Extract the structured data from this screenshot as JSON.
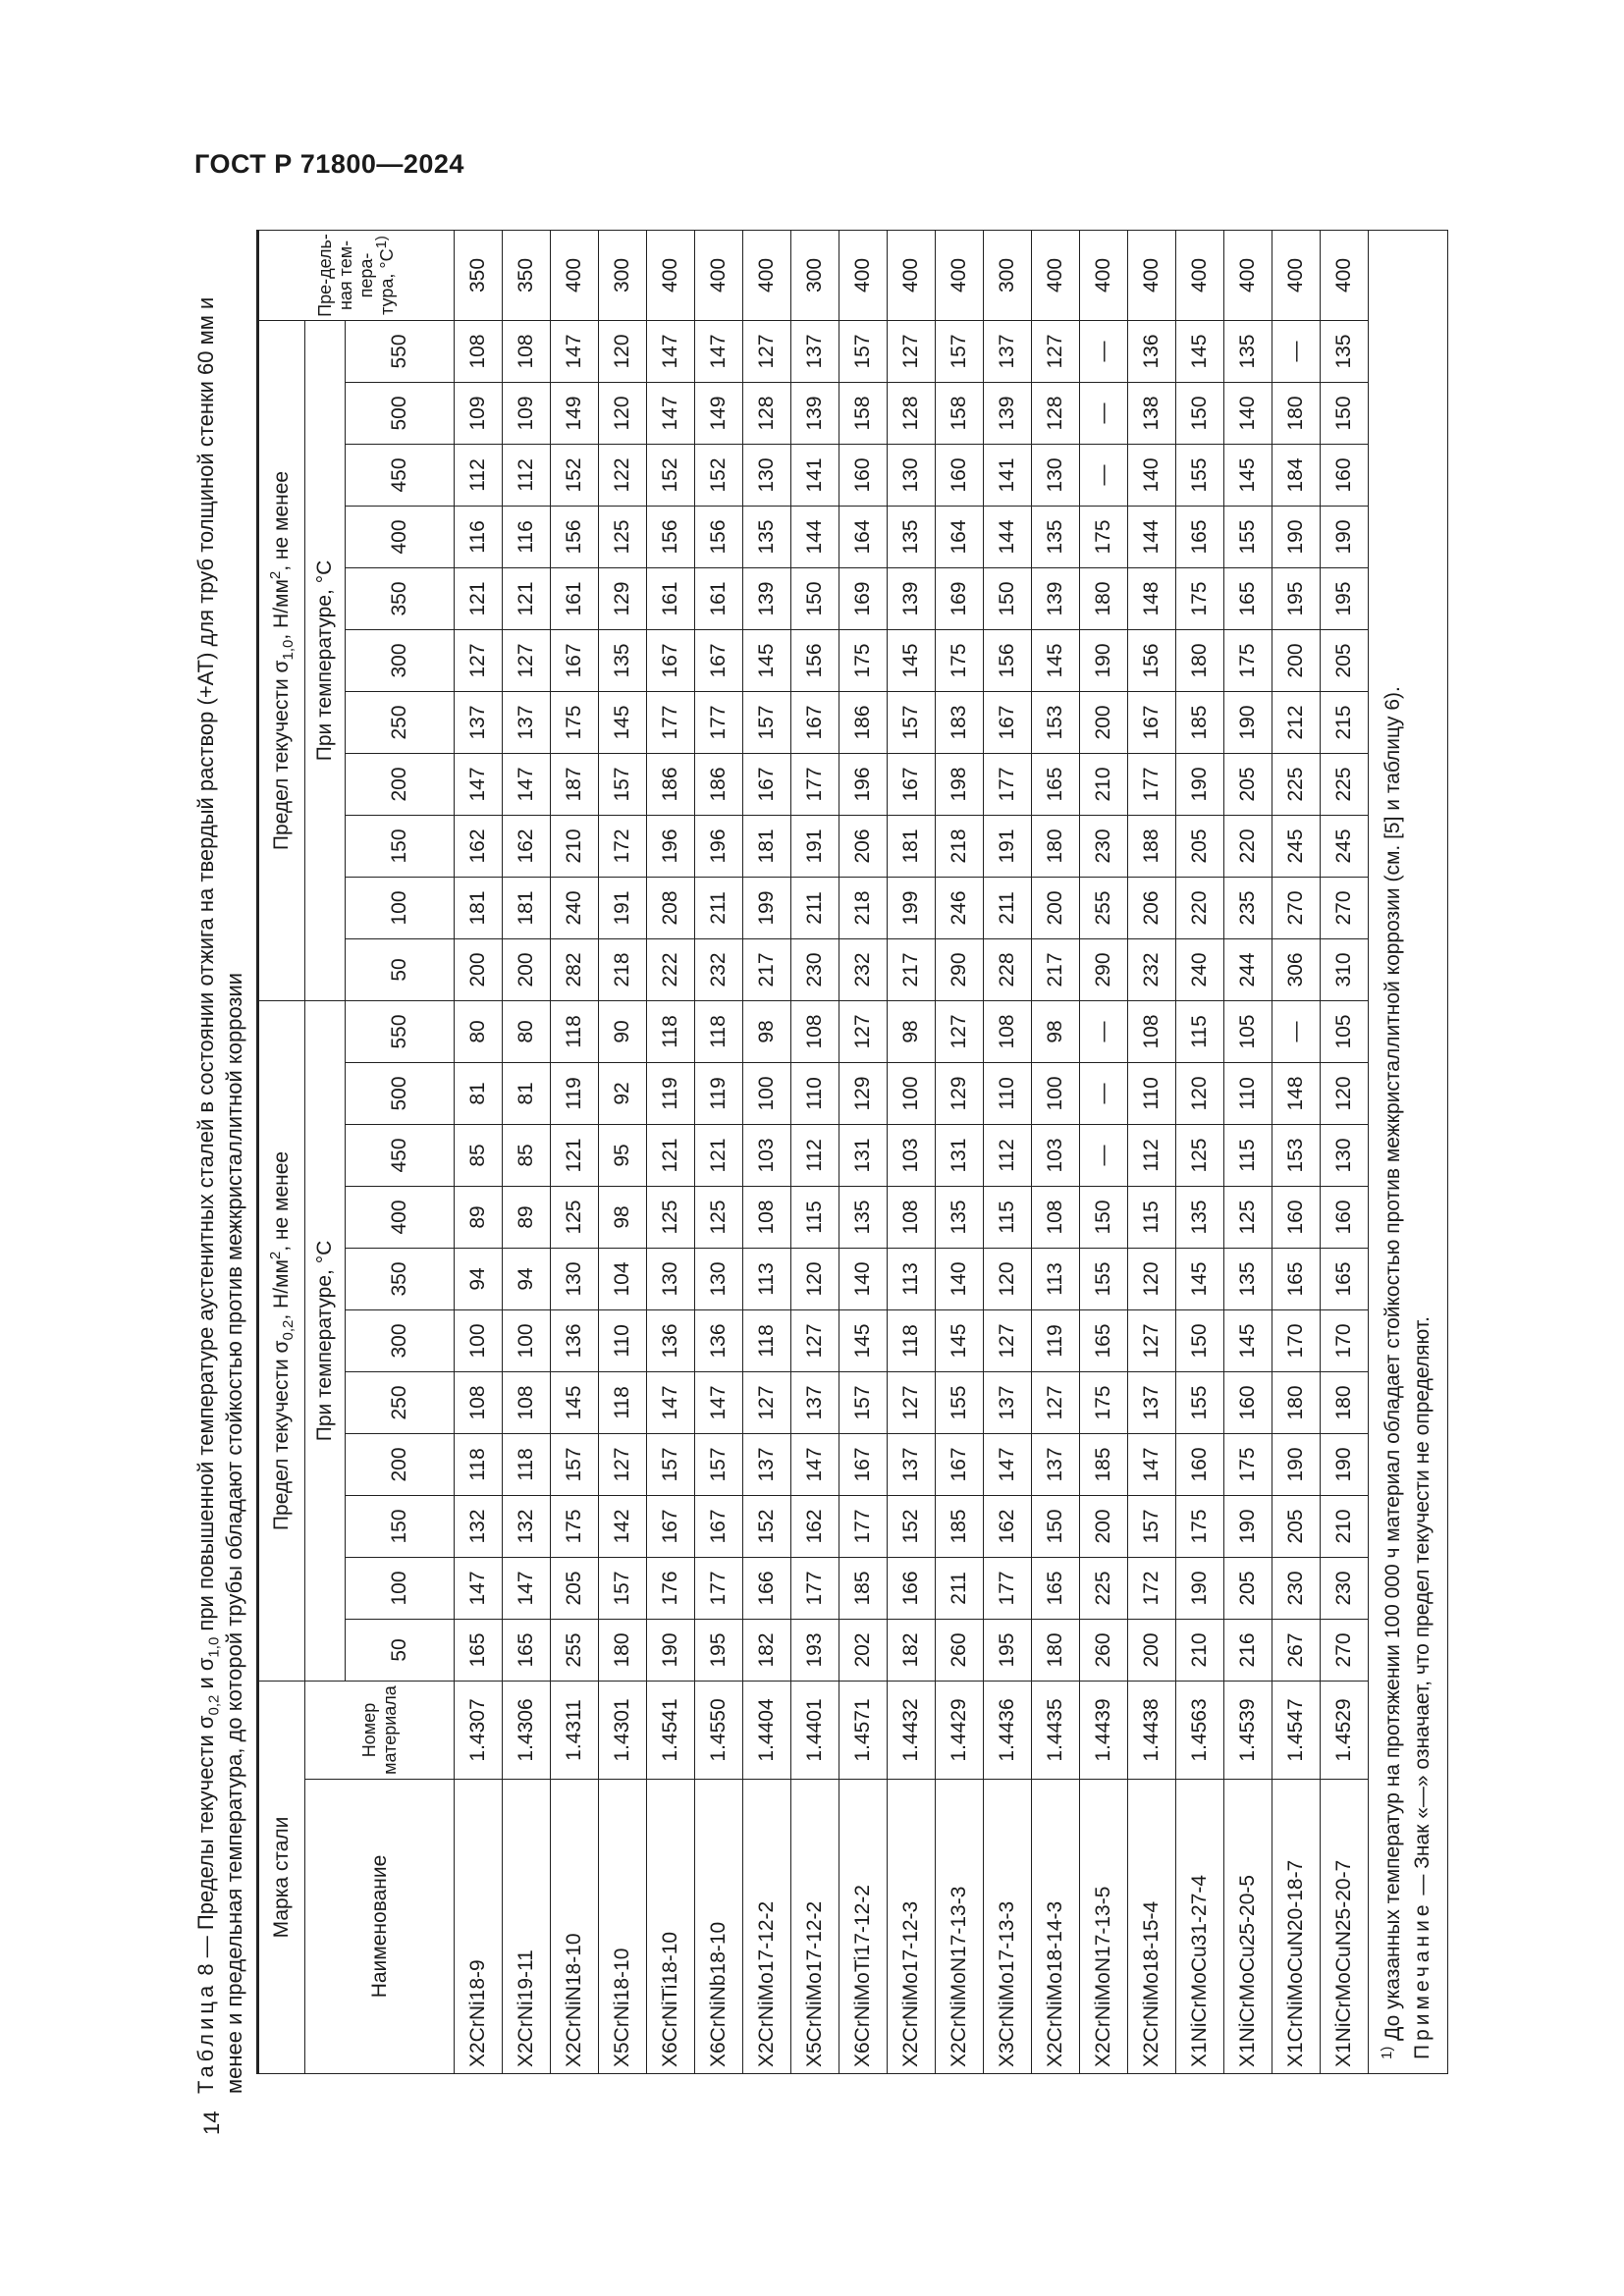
{
  "header": {
    "standard": "ГОСТ Р 71800—2024"
  },
  "page_number": "14",
  "caption": {
    "label": "Таблица",
    "number": "8",
    "dash": "—",
    "p1": "Пределы текучести σ",
    "s1": "0,2",
    "p2": " и σ",
    "s2": "1,0",
    "p3": " при повышенной температуре аустенитных сталей в состоянии отжига на твердый раствор (+АТ) для труб толщиной стенки 60 мм и менее и предельная температура, до которой трубы обладают стойкостью против межкристаллитной коррозии"
  },
  "table": {
    "grade_header": "Марка стали",
    "name_header": "Наименование",
    "number_header": "Номер материала",
    "sigma02_header": {
      "p1": "Предел текучести σ",
      "sub": "0,2",
      "p2": ", Н/мм",
      "sup": "2",
      "p3": ", не менее"
    },
    "sigma10_header": {
      "p1": "Предел текучести σ",
      "sub": "1,0",
      "p2": ", Н/мм",
      "sup": "2",
      "p3": ", не менее"
    },
    "at_temp_header": "При температуре, °С",
    "limit_temp_header": {
      "text": "Пре-дель-ная тем-пера-тура, °С",
      "sup": "1)"
    },
    "temperatures": [
      "50",
      "100",
      "150",
      "200",
      "250",
      "300",
      "350",
      "400",
      "450",
      "500",
      "550"
    ],
    "rows": [
      {
        "name": "X2CrNi18-9",
        "number": "1.4307",
        "s02": [
          "165",
          "147",
          "132",
          "118",
          "108",
          "100",
          "94",
          "89",
          "85",
          "81",
          "80"
        ],
        "s10": [
          "200",
          "181",
          "162",
          "147",
          "137",
          "127",
          "121",
          "116",
          "112",
          "109",
          "108"
        ],
        "limit": "350"
      },
      {
        "name": "X2CrNi19-11",
        "number": "1.4306",
        "s02": [
          "165",
          "147",
          "132",
          "118",
          "108",
          "100",
          "94",
          "89",
          "85",
          "81",
          "80"
        ],
        "s10": [
          "200",
          "181",
          "162",
          "147",
          "137",
          "127",
          "121",
          "116",
          "112",
          "109",
          "108"
        ],
        "limit": "350"
      },
      {
        "name": "X2CrNiN18-10",
        "number": "1.4311",
        "s02": [
          "255",
          "205",
          "175",
          "157",
          "145",
          "136",
          "130",
          "125",
          "121",
          "119",
          "118"
        ],
        "s10": [
          "282",
          "240",
          "210",
          "187",
          "175",
          "167",
          "161",
          "156",
          "152",
          "149",
          "147"
        ],
        "limit": "400"
      },
      {
        "name": "X5CrNi18-10",
        "number": "1.4301",
        "s02": [
          "180",
          "157",
          "142",
          "127",
          "118",
          "110",
          "104",
          "98",
          "95",
          "92",
          "90"
        ],
        "s10": [
          "218",
          "191",
          "172",
          "157",
          "145",
          "135",
          "129",
          "125",
          "122",
          "120",
          "120"
        ],
        "limit": "300"
      },
      {
        "name": "X6CrNiTi18-10",
        "number": "1.4541",
        "s02": [
          "190",
          "176",
          "167",
          "157",
          "147",
          "136",
          "130",
          "125",
          "121",
          "119",
          "118"
        ],
        "s10": [
          "222",
          "208",
          "196",
          "186",
          "177",
          "167",
          "161",
          "156",
          "152",
          "147",
          "147"
        ],
        "limit": "400"
      },
      {
        "name": "X6CrNiNb18-10",
        "number": "1.4550",
        "s02": [
          "195",
          "177",
          "167",
          "157",
          "147",
          "136",
          "130",
          "125",
          "121",
          "119",
          "118"
        ],
        "s10": [
          "232",
          "211",
          "196",
          "186",
          "177",
          "167",
          "161",
          "156",
          "152",
          "149",
          "147"
        ],
        "limit": "400"
      },
      {
        "name": "X2CrNiMo17-12-2",
        "number": "1.4404",
        "s02": [
          "182",
          "166",
          "152",
          "137",
          "127",
          "118",
          "113",
          "108",
          "103",
          "100",
          "98"
        ],
        "s10": [
          "217",
          "199",
          "181",
          "167",
          "157",
          "145",
          "139",
          "135",
          "130",
          "128",
          "127"
        ],
        "limit": "400"
      },
      {
        "name": "X5CrNiMo17-12-2",
        "number": "1.4401",
        "s02": [
          "193",
          "177",
          "162",
          "147",
          "137",
          "127",
          "120",
          "115",
          "112",
          "110",
          "108"
        ],
        "s10": [
          "230",
          "211",
          "191",
          "177",
          "167",
          "156",
          "150",
          "144",
          "141",
          "139",
          "137"
        ],
        "limit": "300"
      },
      {
        "name": "X6CrNiMoTi17-12-2",
        "number": "1.4571",
        "s02": [
          "202",
          "185",
          "177",
          "167",
          "157",
          "145",
          "140",
          "135",
          "131",
          "129",
          "127"
        ],
        "s10": [
          "232",
          "218",
          "206",
          "196",
          "186",
          "175",
          "169",
          "164",
          "160",
          "158",
          "157"
        ],
        "limit": "400"
      },
      {
        "name": "X2CrNiMo17-12-3",
        "number": "1.4432",
        "s02": [
          "182",
          "166",
          "152",
          "137",
          "127",
          "118",
          "113",
          "108",
          "103",
          "100",
          "98"
        ],
        "s10": [
          "217",
          "199",
          "181",
          "167",
          "157",
          "145",
          "139",
          "135",
          "130",
          "128",
          "127"
        ],
        "limit": "400"
      },
      {
        "name": "X2CrNiMoN17-13-3",
        "number": "1.4429",
        "s02": [
          "260",
          "211",
          "185",
          "167",
          "155",
          "145",
          "140",
          "135",
          "131",
          "129",
          "127"
        ],
        "s10": [
          "290",
          "246",
          "218",
          "198",
          "183",
          "175",
          "169",
          "164",
          "160",
          "158",
          "157"
        ],
        "limit": "400"
      },
      {
        "name": "X3CrNiMo17-13-3",
        "number": "1.4436",
        "s02": [
          "195",
          "177",
          "162",
          "147",
          "137",
          "127",
          "120",
          "115",
          "112",
          "110",
          "108"
        ],
        "s10": [
          "228",
          "211",
          "191",
          "177",
          "167",
          "156",
          "150",
          "144",
          "141",
          "139",
          "137"
        ],
        "limit": "300"
      },
      {
        "name": "X2CrNiMo18-14-3",
        "number": "1.4435",
        "s02": [
          "180",
          "165",
          "150",
          "137",
          "127",
          "119",
          "113",
          "108",
          "103",
          "100",
          "98"
        ],
        "s10": [
          "217",
          "200",
          "180",
          "165",
          "153",
          "145",
          "139",
          "135",
          "130",
          "128",
          "127"
        ],
        "limit": "400"
      },
      {
        "name": "X2CrNiMoN17-13-5",
        "number": "1.4439",
        "s02": [
          "260",
          "225",
          "200",
          "185",
          "175",
          "165",
          "155",
          "150",
          "—",
          "—",
          "—"
        ],
        "s10": [
          "290",
          "255",
          "230",
          "210",
          "200",
          "190",
          "180",
          "175",
          "—",
          "—",
          "—"
        ],
        "limit": "400"
      },
      {
        "name": "X2CrNiMo18-15-4",
        "number": "1.4438",
        "s02": [
          "200",
          "172",
          "157",
          "147",
          "137",
          "127",
          "120",
          "115",
          "112",
          "110",
          "108"
        ],
        "s10": [
          "232",
          "206",
          "188",
          "177",
          "167",
          "156",
          "148",
          "144",
          "140",
          "138",
          "136"
        ],
        "limit": "400"
      },
      {
        "name": "X1NiCrMoCu31-27-4",
        "number": "1.4563",
        "s02": [
          "210",
          "190",
          "175",
          "160",
          "155",
          "150",
          "145",
          "135",
          "125",
          "120",
          "115"
        ],
        "s10": [
          "240",
          "220",
          "205",
          "190",
          "185",
          "180",
          "175",
          "165",
          "155",
          "150",
          "145"
        ],
        "limit": "400"
      },
      {
        "name": "X1NiCrMoCu25-20-5",
        "number": "1.4539",
        "s02": [
          "216",
          "205",
          "190",
          "175",
          "160",
          "145",
          "135",
          "125",
          "115",
          "110",
          "105"
        ],
        "s10": [
          "244",
          "235",
          "220",
          "205",
          "190",
          "175",
          "165",
          "155",
          "145",
          "140",
          "135"
        ],
        "limit": "400"
      },
      {
        "name": "X1CrNiMoCuN20-18-7",
        "number": "1.4547",
        "s02": [
          "267",
          "230",
          "205",
          "190",
          "180",
          "170",
          "165",
          "160",
          "153",
          "148",
          "—"
        ],
        "s10": [
          "306",
          "270",
          "245",
          "225",
          "212",
          "200",
          "195",
          "190",
          "184",
          "180",
          "—"
        ],
        "limit": "400"
      },
      {
        "name": "X1NiCrMoCuN25-20-7",
        "number": "1.4529",
        "s02": [
          "270",
          "230",
          "210",
          "190",
          "180",
          "170",
          "165",
          "160",
          "130",
          "120",
          "105"
        ],
        "s10": [
          "310",
          "270",
          "245",
          "225",
          "215",
          "205",
          "195",
          "190",
          "160",
          "150",
          "135"
        ],
        "limit": "400"
      }
    ],
    "footnote": {
      "marker": "1)",
      "text": " До указанных температур на протяжении 100 000 ч материал обладает стойкостью против межкристаллитной коррозии (см. [5] и таблицу 6)."
    },
    "note": {
      "label": "Примечание",
      "text": " — Знак «—» означает, что предел текучести не определяют."
    }
  }
}
